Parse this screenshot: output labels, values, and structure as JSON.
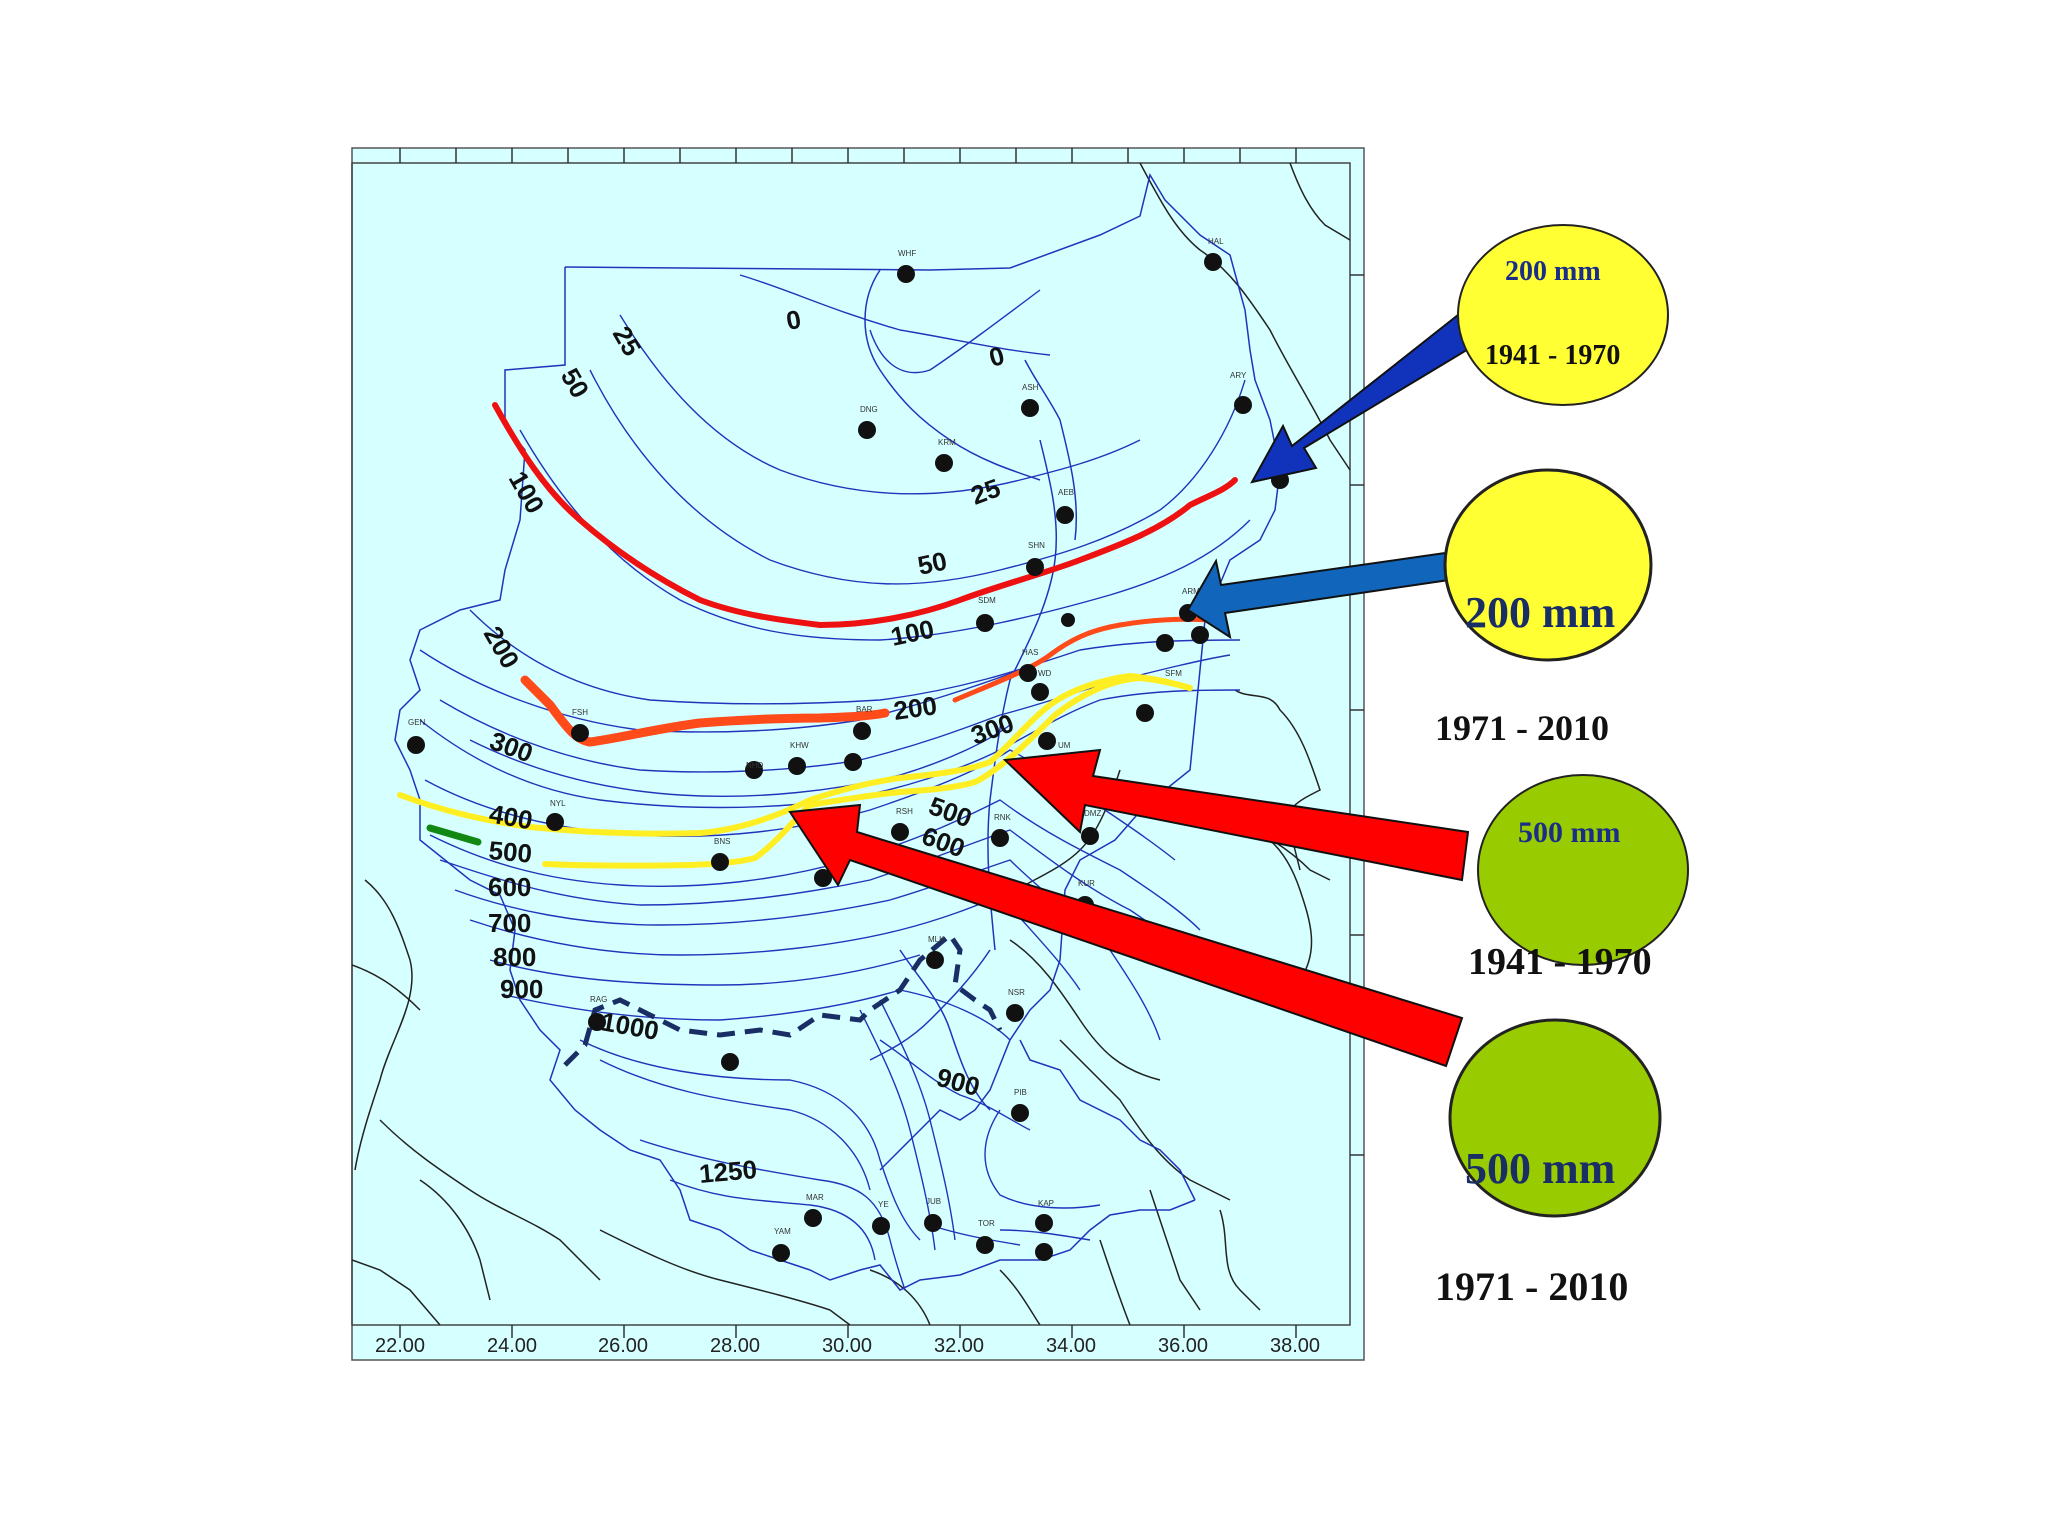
{
  "map": {
    "water_color": "#d6ffff",
    "boundary_color": "#2233bb",
    "x_ticks": [
      "22.00",
      "24.00",
      "26.00",
      "28.00",
      "30.00",
      "32.00",
      "34.00",
      "36.00",
      "38.00"
    ],
    "isohyet_labels": [
      {
        "text": "0"
      },
      {
        "text": "0"
      },
      {
        "text": "25"
      },
      {
        "text": "25"
      },
      {
        "text": "50"
      },
      {
        "text": "50"
      },
      {
        "text": "100"
      },
      {
        "text": "100"
      },
      {
        "text": "200"
      },
      {
        "text": "200"
      },
      {
        "text": "300"
      },
      {
        "text": "300"
      },
      {
        "text": "400"
      },
      {
        "text": "500"
      },
      {
        "text": "500"
      },
      {
        "text": "600"
      },
      {
        "text": "600"
      },
      {
        "text": "700"
      },
      {
        "text": "800"
      },
      {
        "text": "900"
      },
      {
        "text": "1000"
      },
      {
        "text": "900"
      },
      {
        "text": "1250"
      }
    ],
    "stations": [
      {
        "code": "WHF"
      },
      {
        "code": "HAL"
      },
      {
        "code": "ARY"
      },
      {
        "code": "ASH"
      },
      {
        "code": "DNG"
      },
      {
        "code": "KRM"
      },
      {
        "code": "AEB"
      },
      {
        "code": "SHN"
      },
      {
        "code": "ARM"
      },
      {
        "code": "SDM"
      },
      {
        "code": "HAS"
      },
      {
        "code": "WD"
      },
      {
        "code": "SFM"
      },
      {
        "code": "GEN"
      },
      {
        "code": "FSH"
      },
      {
        "code": "BAR"
      },
      {
        "code": "KHW"
      },
      {
        "code": "NHD"
      },
      {
        "code": "NYL"
      },
      {
        "code": "BNS"
      },
      {
        "code": "RSH"
      },
      {
        "code": "RNK"
      },
      {
        "code": "DMZ"
      },
      {
        "code": "KUR"
      },
      {
        "code": "MLK"
      },
      {
        "code": "NSR"
      },
      {
        "code": "RAG"
      },
      {
        "code": "PIB"
      },
      {
        "code": "MAR"
      },
      {
        "code": "YE"
      },
      {
        "code": "JUB"
      },
      {
        "code": "TOR"
      },
      {
        "code": "KAP"
      },
      {
        "code": "YAM"
      },
      {
        "code": "UM"
      }
    ],
    "highlight_colors": {
      "red_1941_200": "#ee1111",
      "orange_1971_200": "#ff4a1a",
      "yellow_500": "#ffee22",
      "green_segment": "#118811",
      "dashed_border": "#1a2e66"
    }
  },
  "legend": [
    {
      "value_label": "200 mm",
      "period": "1941 - 1970",
      "fill": "#ffff33",
      "arrow_color": "#1133bb"
    },
    {
      "value_label": "200 mm",
      "period": "1971 - 2010",
      "fill": "#ffff33",
      "arrow_color": "#1166bb"
    },
    {
      "value_label": "500 mm",
      "period": "1941 - 1970",
      "fill": "#99cc00",
      "arrow_color": "#ff0000"
    },
    {
      "value_label": "500 mm",
      "period": "1971 - 2010",
      "fill": "#99cc00",
      "arrow_color": "#ff0000"
    }
  ]
}
